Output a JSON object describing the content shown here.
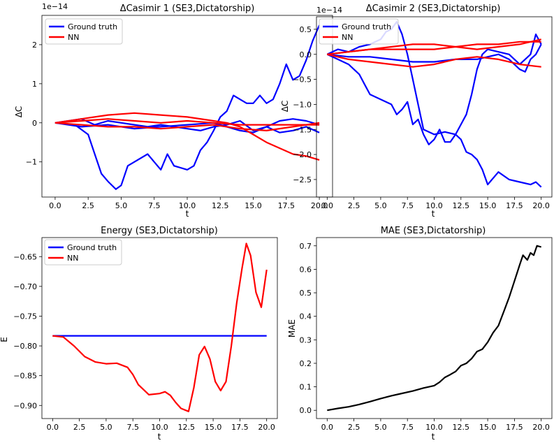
{
  "chart_data": [
    {
      "type": "line",
      "title": "ΔCasimir 1 (SE3,Dictatorship)",
      "xlabel": "t",
      "ylabel": "ΔC",
      "offset_text": "1e−14",
      "xlim": [
        -1.0,
        21.0
      ],
      "ylim": [
        -1.9,
        2.75
      ],
      "xticks": [
        0,
        2.5,
        5,
        7.5,
        10,
        12.5,
        15,
        17.5,
        20
      ],
      "xtick_labels": [
        "0.0",
        "2.5",
        "5.0",
        "7.5",
        "10.0",
        "12.5",
        "15.0",
        "17.5",
        "20.0"
      ],
      "yticks": [
        -1,
        0,
        1,
        2
      ],
      "ytick_labels": [
        "−1",
        "0",
        "1",
        "2"
      ],
      "legend": [
        "Ground truth",
        "NN"
      ],
      "legend_loc": "upper-left",
      "colors": {
        "ground_truth": "#0000ff",
        "nn": "#ff0000"
      },
      "series": [
        {
          "name": "Ground truth",
          "color": "#0000ff",
          "x": [
            0,
            1.5,
            2.5,
            3,
            3.5,
            4,
            4.6,
            5,
            5.5,
            6,
            7,
            7.5,
            8,
            8.5,
            9,
            10,
            10.5,
            11,
            11.5,
            12,
            12.5,
            13,
            13.5,
            14,
            14.5,
            15,
            15.5,
            16,
            16.5,
            17,
            17.5,
            18,
            18.5,
            19,
            19.5,
            20
          ],
          "y": [
            0,
            -0.05,
            -0.3,
            -0.8,
            -1.3,
            -1.5,
            -1.7,
            -1.6,
            -1.1,
            -1.0,
            -0.8,
            -1.0,
            -1.2,
            -0.8,
            -1.1,
            -1.2,
            -1.1,
            -0.7,
            -0.5,
            -0.2,
            0.15,
            0.3,
            0.7,
            0.6,
            0.5,
            0.5,
            0.7,
            0.5,
            0.6,
            1.0,
            1.5,
            1.1,
            1.2,
            1.6,
            2.1,
            2.5
          ]
        },
        {
          "name": "Ground truth",
          "color": "#0000ff",
          "x": [
            0,
            2,
            3,
            4,
            5,
            6,
            7,
            8,
            9,
            10,
            11,
            12,
            13,
            14,
            15,
            16,
            17,
            18,
            19,
            20
          ],
          "y": [
            0,
            0.1,
            -0.05,
            0.05,
            0.0,
            -0.05,
            -0.1,
            -0.05,
            -0.1,
            -0.15,
            -0.2,
            -0.1,
            -0.05,
            0.05,
            -0.2,
            -0.1,
            -0.25,
            -0.2,
            -0.1,
            -0.25
          ]
        },
        {
          "name": "Ground truth",
          "color": "#0000ff",
          "x": [
            0,
            2,
            4,
            6,
            8,
            10,
            12,
            13,
            14,
            15,
            16,
            17,
            18,
            19,
            20
          ],
          "y": [
            0,
            -0.1,
            -0.05,
            -0.15,
            -0.1,
            -0.05,
            0.0,
            -0.1,
            -0.2,
            -0.25,
            -0.1,
            0.05,
            0.1,
            0.05,
            -0.05
          ]
        },
        {
          "name": "NN",
          "color": "#ff0000",
          "x": [
            0,
            2,
            4,
            6,
            8,
            10,
            12,
            13,
            14,
            15,
            16,
            17,
            18,
            19,
            20
          ],
          "y": [
            0,
            0.1,
            0.2,
            0.25,
            0.2,
            0.15,
            0.05,
            0.0,
            -0.1,
            -0.3,
            -0.5,
            -0.65,
            -0.8,
            -0.85,
            -0.95
          ]
        },
        {
          "name": "NN",
          "color": "#ff0000",
          "x": [
            0,
            2,
            4,
            6,
            8,
            10,
            12,
            14,
            16,
            18,
            20
          ],
          "y": [
            0,
            -0.05,
            -0.1,
            -0.1,
            -0.15,
            -0.1,
            -0.05,
            -0.15,
            -0.2,
            -0.1,
            0.0
          ]
        },
        {
          "name": "NN",
          "color": "#ff0000",
          "x": [
            0,
            2,
            4,
            6,
            8,
            10,
            12,
            14,
            16,
            18,
            20
          ],
          "y": [
            0,
            0.05,
            0.1,
            0.05,
            0.0,
            0.05,
            0.0,
            -0.05,
            -0.05,
            -0.05,
            -0.05
          ]
        }
      ]
    },
    {
      "type": "line",
      "title": "ΔCasimir 2 (SE3,Dictatorship)",
      "xlabel": "t",
      "ylabel": "ΔC",
      "offset_text": "1e−14",
      "xlim": [
        -1.0,
        21.0
      ],
      "ylim": [
        -2.85,
        0.75
      ],
      "xticks": [
        0,
        2.5,
        5,
        7.5,
        10,
        12.5,
        15,
        17.5,
        20
      ],
      "xtick_labels": [
        "0.0",
        "2.5",
        "5.0",
        "7.5",
        "10.0",
        "12.5",
        "15.0",
        "17.5",
        "20.0"
      ],
      "yticks": [
        0.5,
        0.0,
        -0.5,
        -1.0,
        -1.5,
        -2.0,
        -2.5
      ],
      "ytick_labels": [
        "0.5",
        "0.0",
        "−0.5",
        "−1.0",
        "−1.5",
        "−2.0",
        "−2.5"
      ],
      "legend": [
        "Ground truth",
        "NN"
      ],
      "legend_loc": "upper-left",
      "colors": {
        "ground_truth": "#0000ff",
        "nn": "#ff0000"
      },
      "series": [
        {
          "name": "Ground truth",
          "color": "#0000ff",
          "x": [
            0,
            1,
            2,
            3,
            3.5,
            4,
            5,
            6,
            6.5,
            7,
            7.5,
            8,
            8.5,
            9,
            9.5,
            10,
            10.5,
            11,
            11.5,
            12,
            12.5,
            13,
            13.5,
            14,
            14.5,
            15,
            16,
            17,
            18,
            19,
            19.5,
            20
          ],
          "y": [
            0,
            -0.1,
            -0.2,
            -0.4,
            -0.6,
            -0.8,
            -0.9,
            -1.0,
            -1.2,
            -1.1,
            -0.95,
            -1.4,
            -1.3,
            -1.6,
            -1.8,
            -1.7,
            -1.5,
            -1.75,
            -1.75,
            -1.6,
            -1.7,
            -1.95,
            -2.0,
            -2.1,
            -2.3,
            -2.6,
            -2.35,
            -2.5,
            -2.55,
            -2.6,
            -2.55,
            -2.65
          ]
        },
        {
          "name": "Ground truth",
          "color": "#0000ff",
          "x": [
            0,
            1,
            2,
            3,
            4,
            5,
            5.5,
            6,
            6.5,
            7,
            7.5,
            8,
            8.5,
            9,
            10,
            11,
            12,
            12.5,
            13,
            13.5,
            14,
            14.5,
            15,
            16,
            17,
            18,
            19,
            19.5,
            20
          ],
          "y": [
            0,
            0.1,
            0.05,
            0.15,
            0.2,
            0.3,
            0.45,
            0.5,
            0.65,
            0.4,
            0.0,
            -0.5,
            -1.0,
            -1.5,
            -1.6,
            -1.55,
            -1.6,
            -1.4,
            -1.2,
            -0.8,
            -0.3,
            0.0,
            0.1,
            0.05,
            0.0,
            -0.2,
            0.0,
            0.4,
            0.2
          ]
        },
        {
          "name": "Ground truth",
          "color": "#0000ff",
          "x": [
            0,
            2,
            4,
            6,
            8,
            10,
            12,
            14,
            15,
            16,
            17,
            18,
            18.5,
            19,
            19.5,
            20
          ],
          "y": [
            0,
            -0.05,
            -0.05,
            -0.1,
            -0.15,
            -0.15,
            -0.1,
            -0.1,
            -0.05,
            0.0,
            -0.1,
            -0.3,
            -0.35,
            -0.1,
            0.0,
            0.2
          ]
        },
        {
          "name": "NN",
          "color": "#ff0000",
          "x": [
            0,
            2,
            4,
            6,
            8,
            10,
            12,
            14,
            16,
            18,
            20
          ],
          "y": [
            0,
            0.05,
            0.1,
            0.15,
            0.2,
            0.2,
            0.15,
            0.1,
            0.15,
            0.2,
            0.3
          ]
        },
        {
          "name": "NN",
          "color": "#ff0000",
          "x": [
            0,
            2,
            4,
            6,
            8,
            10,
            12,
            14,
            16,
            18,
            20
          ],
          "y": [
            0,
            0.05,
            0.1,
            0.1,
            0.1,
            0.1,
            0.15,
            0.2,
            0.2,
            0.25,
            0.25
          ]
        },
        {
          "name": "NN",
          "color": "#ff0000",
          "x": [
            0,
            2,
            4,
            6,
            8,
            10,
            12,
            14,
            16,
            18,
            20
          ],
          "y": [
            0,
            -0.1,
            -0.15,
            -0.2,
            -0.25,
            -0.2,
            -0.1,
            -0.05,
            -0.1,
            -0.2,
            -0.25
          ]
        }
      ]
    },
    {
      "type": "line",
      "title": "Energy (SE3,Dictatorship)",
      "xlabel": "t",
      "ylabel": "E",
      "offset_text": "",
      "xlim": [
        -1.0,
        21.0
      ],
      "ylim": [
        -0.922,
        -0.618
      ],
      "xticks": [
        0,
        2.5,
        5,
        7.5,
        10,
        12.5,
        15,
        17.5,
        20
      ],
      "xtick_labels": [
        "0.0",
        "2.5",
        "5.0",
        "7.5",
        "10.0",
        "12.5",
        "15.0",
        "17.5",
        "20.0"
      ],
      "yticks": [
        -0.65,
        -0.7,
        -0.75,
        -0.8,
        -0.85,
        -0.9
      ],
      "ytick_labels": [
        "−0.65",
        "−0.70",
        "−0.75",
        "−0.80",
        "−0.85",
        "−0.90"
      ],
      "legend": [
        "Ground truth",
        "NN"
      ],
      "legend_loc": "upper-left",
      "colors": {
        "ground_truth": "#0000ff",
        "nn": "#ff0000"
      },
      "series": [
        {
          "name": "Ground truth",
          "color": "#0000ff",
          "x": [
            0,
            20
          ],
          "y": [
            -0.783,
            -0.783
          ]
        },
        {
          "name": "NN",
          "color": "#ff0000",
          "x": [
            0,
            1,
            2,
            3,
            4,
            5,
            6,
            7,
            7.5,
            8,
            9,
            10,
            10.5,
            11,
            11.5,
            12,
            12.7,
            13.2,
            13.7,
            14.2,
            14.7,
            15.2,
            15.7,
            16.2,
            16.7,
            17.2,
            17.7,
            18.1,
            18.5,
            19,
            19.5,
            20
          ],
          "y": [
            -0.783,
            -0.785,
            -0.8,
            -0.818,
            -0.827,
            -0.83,
            -0.829,
            -0.836,
            -0.848,
            -0.865,
            -0.882,
            -0.88,
            -0.877,
            -0.883,
            -0.895,
            -0.905,
            -0.91,
            -0.87,
            -0.815,
            -0.801,
            -0.822,
            -0.86,
            -0.875,
            -0.86,
            -0.8,
            -0.728,
            -0.67,
            -0.628,
            -0.648,
            -0.71,
            -0.735,
            -0.672
          ]
        }
      ]
    },
    {
      "type": "line",
      "title": "MAE (SE3,Dictatorship)",
      "xlabel": "t",
      "ylabel": "MAE",
      "offset_text": "",
      "xlim": [
        -1.0,
        21.0
      ],
      "ylim": [
        -0.035,
        0.735
      ],
      "xticks": [
        0,
        2.5,
        5,
        7.5,
        10,
        12.5,
        15,
        17.5,
        20
      ],
      "xtick_labels": [
        "0.0",
        "2.5",
        "5.0",
        "7.5",
        "10.0",
        "12.5",
        "15.0",
        "17.5",
        "20.0"
      ],
      "yticks": [
        0.0,
        0.1,
        0.2,
        0.3,
        0.4,
        0.5,
        0.6,
        0.7
      ],
      "ytick_labels": [
        "0.0",
        "0.1",
        "0.2",
        "0.3",
        "0.4",
        "0.5",
        "0.6",
        "0.7"
      ],
      "legend": [],
      "legend_loc": "",
      "colors": {
        "line": "#000000"
      },
      "series": [
        {
          "name": "MAE",
          "color": "#000000",
          "x": [
            0,
            1,
            2,
            3,
            4,
            5,
            6,
            7,
            8,
            9,
            10,
            10.5,
            11,
            11.5,
            12,
            12.5,
            13,
            13.5,
            14,
            14.5,
            15,
            15.5,
            16,
            16.5,
            17,
            17.5,
            18,
            18.3,
            18.7,
            19,
            19.3,
            19.6,
            20
          ],
          "y": [
            0.0,
            0.008,
            0.015,
            0.025,
            0.037,
            0.05,
            0.062,
            0.072,
            0.082,
            0.095,
            0.105,
            0.12,
            0.14,
            0.152,
            0.165,
            0.19,
            0.2,
            0.22,
            0.25,
            0.26,
            0.29,
            0.33,
            0.36,
            0.42,
            0.48,
            0.55,
            0.62,
            0.66,
            0.64,
            0.67,
            0.66,
            0.7,
            0.695
          ]
        }
      ]
    }
  ]
}
